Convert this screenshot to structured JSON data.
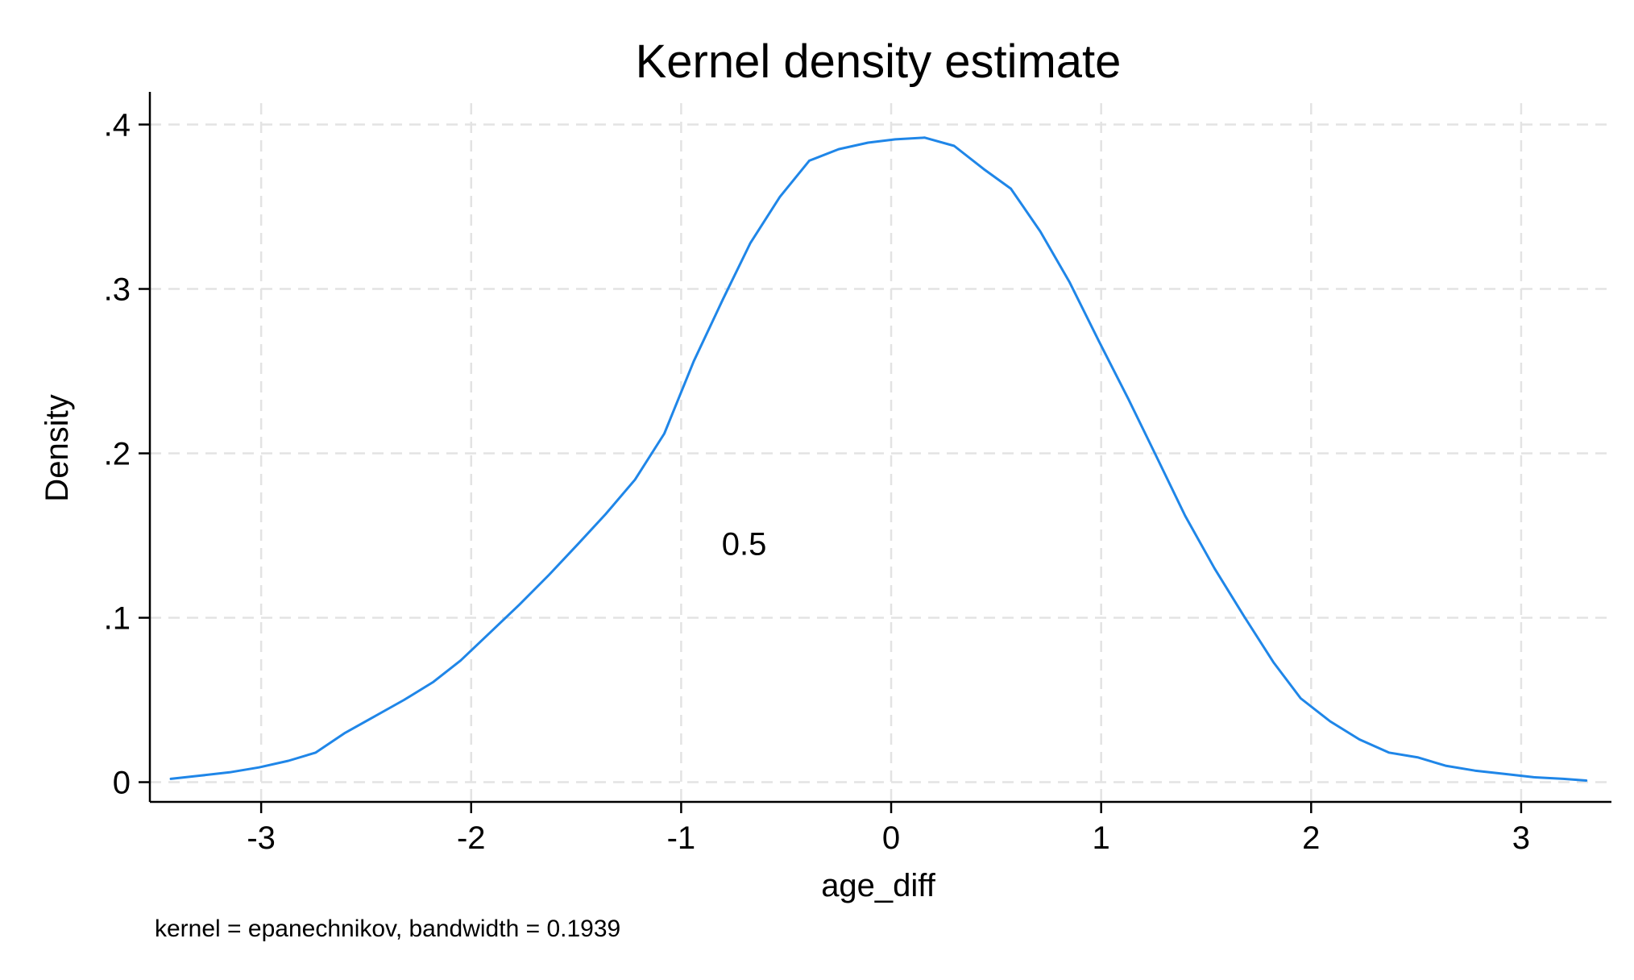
{
  "chart_data": {
    "type": "line",
    "title": "Kernel density estimate",
    "xlabel": "age_diff",
    "ylabel": "Density",
    "note": "kernel = epanechnikov, bandwidth = 0.1939",
    "annotation": {
      "text": "0.5",
      "x": -0.7,
      "y": 0.145
    },
    "xlim": [
      -3.53,
      3.43
    ],
    "ylim": [
      -0.012,
      0.413
    ],
    "x_ticks": [
      -3,
      -2,
      -1,
      0,
      1,
      2,
      3
    ],
    "x_tick_labels": [
      "-3",
      "-2",
      "-1",
      "0",
      "1",
      "2",
      "3"
    ],
    "y_ticks": [
      0,
      0.1,
      0.2,
      0.3,
      0.4
    ],
    "y_tick_labels": [
      "0",
      ".1",
      ".2",
      ".3",
      ".4"
    ],
    "grid": true,
    "line_color": "#1f86e8",
    "series": [
      {
        "x": [
          -3.43,
          -3.29,
          -3.15,
          -3.01,
          -2.87,
          -2.74,
          -2.6,
          -2.46,
          -2.32,
          -2.18,
          -2.05,
          -1.91,
          -1.77,
          -1.63,
          -1.49,
          -1.36,
          -1.22,
          -1.08,
          -0.94,
          -0.8,
          -0.67,
          -0.53,
          -0.39,
          -0.25,
          -0.11,
          0.02,
          0.16,
          0.3,
          0.44,
          0.57,
          0.71,
          0.85,
          0.99,
          1.13,
          1.26,
          1.4,
          1.54,
          1.68,
          1.82,
          1.95,
          2.09,
          2.23,
          2.37,
          2.51,
          2.64,
          2.78,
          2.92,
          3.06,
          3.2,
          3.31
        ],
        "y": [
          0.002,
          0.004,
          0.006,
          0.009,
          0.013,
          0.018,
          0.03,
          0.04,
          0.05,
          0.061,
          0.074,
          0.091,
          0.108,
          0.126,
          0.145,
          0.163,
          0.184,
          0.212,
          0.256,
          0.294,
          0.328,
          0.356,
          0.378,
          0.385,
          0.389,
          0.391,
          0.392,
          0.387,
          0.373,
          0.361,
          0.335,
          0.304,
          0.268,
          0.233,
          0.199,
          0.162,
          0.13,
          0.101,
          0.073,
          0.051,
          0.037,
          0.026,
          0.018,
          0.015,
          0.01,
          0.007,
          0.005,
          0.003,
          0.002,
          0.001
        ]
      }
    ]
  }
}
